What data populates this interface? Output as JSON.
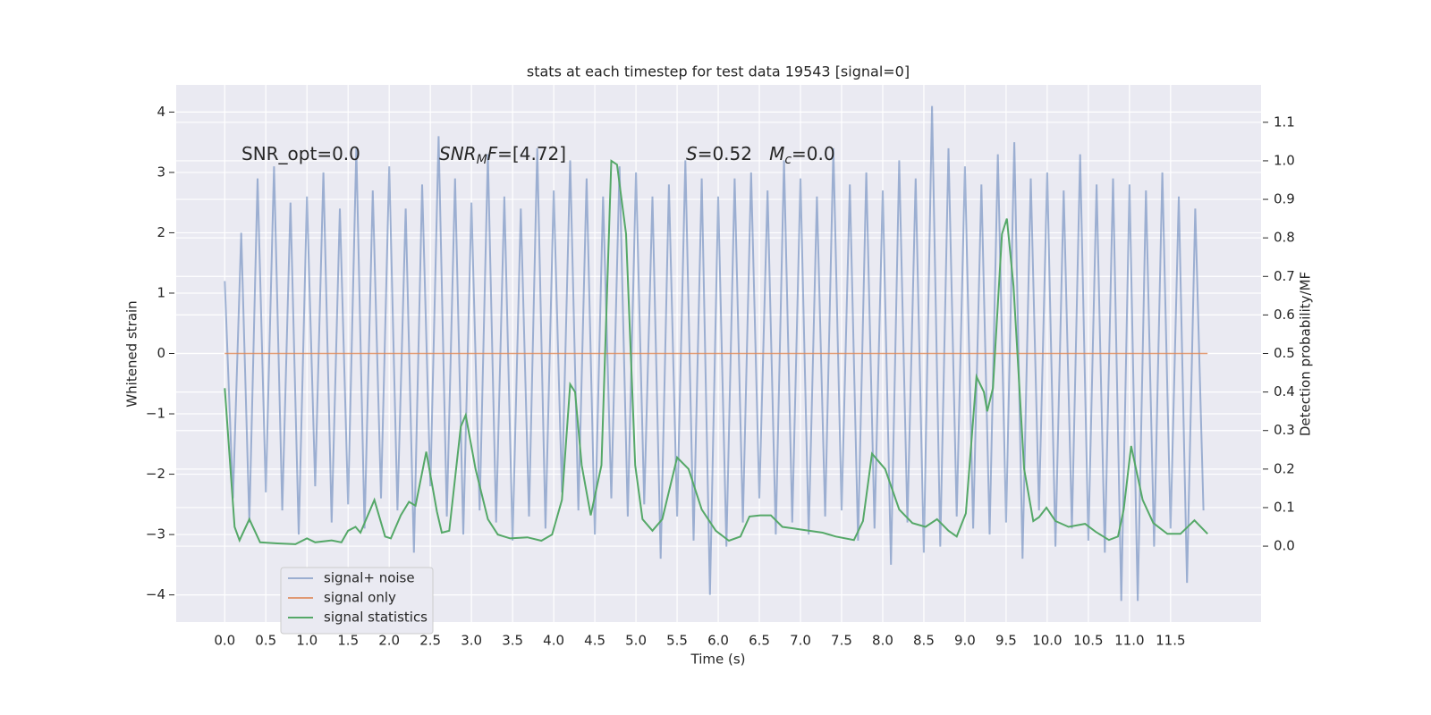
{
  "chart_data": {
    "type": "line",
    "title": "stats at each timestep for test data 19543 [signal=0]",
    "xlabel": "Time (s)",
    "ylabel": "Whitened strain",
    "y2label": "Detection probability/MF",
    "grid": true,
    "legend": "lower left",
    "annotations": [
      [
        {
          "t": "SNR_opt=0.0"
        }
      ],
      [
        {
          "t": "SNR",
          "italic": true
        },
        {
          "t": "M",
          "italic": true,
          "sub": true
        },
        {
          "t": "F",
          "italic": true
        },
        {
          "t": "=[4.72]"
        }
      ],
      [
        {
          "t": "S",
          "italic": true
        },
        {
          "t": "=0.52   "
        },
        {
          "t": "M",
          "italic": true
        },
        {
          "t": "c",
          "italic": true,
          "sub": true
        },
        {
          "t": "=0.0"
        }
      ]
    ],
    "xlim": [
      -0.59,
      12.6
    ],
    "ylim": [
      -4.45,
      4.45
    ],
    "y2lim": [
      -0.197,
      1.197
    ],
    "xticks": [
      {
        "value": 0,
        "label": "0.0"
      },
      {
        "value": 0.5,
        "label": "0.5"
      },
      {
        "value": 1,
        "label": "1.0"
      },
      {
        "value": 1.5,
        "label": "1.5"
      },
      {
        "value": 2,
        "label": "2.0"
      },
      {
        "value": 2.5,
        "label": "2.5"
      },
      {
        "value": 3,
        "label": "3.0"
      },
      {
        "value": 3.5,
        "label": "3.5"
      },
      {
        "value": 4,
        "label": "4.0"
      },
      {
        "value": 4.5,
        "label": "4.5"
      },
      {
        "value": 5,
        "label": "5.0"
      },
      {
        "value": 5.5,
        "label": "5.5"
      },
      {
        "value": 6,
        "label": "6.0"
      },
      {
        "value": 6.5,
        "label": "6.5"
      },
      {
        "value": 7,
        "label": "7.0"
      },
      {
        "value": 7.5,
        "label": "7.5"
      },
      {
        "value": 8,
        "label": "8.0"
      },
      {
        "value": 8.5,
        "label": "8.5"
      },
      {
        "value": 9,
        "label": "9.0"
      },
      {
        "value": 9.5,
        "label": "9.5"
      },
      {
        "value": 10,
        "label": "10.0"
      },
      {
        "value": 10.5,
        "label": "10.5"
      },
      {
        "value": 11,
        "label": "11.0"
      },
      {
        "value": 11.5,
        "label": "11.5"
      }
    ],
    "yticks": [
      {
        "value": -4,
        "label": "−4"
      },
      {
        "value": -3,
        "label": "−3"
      },
      {
        "value": -2,
        "label": "−2"
      },
      {
        "value": -1,
        "label": "−1"
      },
      0,
      1,
      2,
      3,
      4
    ],
    "y2ticks": [
      {
        "value": 0,
        "label": "0.0"
      },
      {
        "value": 0.1,
        "label": "0.1"
      },
      {
        "value": 0.2,
        "label": "0.2"
      },
      {
        "value": 0.3,
        "label": "0.3"
      },
      {
        "value": 0.4,
        "label": "0.4"
      },
      {
        "value": 0.5,
        "label": "0.5"
      },
      {
        "value": 0.6,
        "label": "0.6"
      },
      {
        "value": 0.7,
        "label": "0.7"
      },
      {
        "value": 0.8,
        "label": "0.8"
      },
      {
        "value": 0.9,
        "label": "0.9"
      },
      {
        "value": 1,
        "label": "1.0"
      },
      {
        "value": 1.1,
        "label": "1.1"
      }
    ],
    "series": [
      {
        "name": "signal+ noise",
        "color": "#4c72b0",
        "x": [
          0,
          0.1,
          0.2,
          0.3,
          0.4,
          0.5,
          0.6,
          0.7,
          0.8,
          0.9,
          1,
          1.1,
          1.2,
          1.3,
          1.4,
          1.5,
          1.6,
          1.7,
          1.8,
          1.9,
          2,
          2.1,
          2.2,
          2.3,
          2.4,
          2.5,
          2.6,
          2.7,
          2.8,
          2.9,
          3,
          3.1,
          3.2,
          3.3,
          3.4,
          3.5,
          3.6,
          3.7,
          3.8,
          3.9,
          4,
          4.1,
          4.2,
          4.3,
          4.4,
          4.5,
          4.6,
          4.7,
          4.8,
          4.9,
          5,
          5.1,
          5.2,
          5.3,
          5.4,
          5.5,
          5.6,
          5.7,
          5.8,
          5.9,
          6,
          6.1,
          6.2,
          6.3,
          6.4,
          6.5,
          6.6,
          6.7,
          6.8,
          6.9,
          7,
          7.1,
          7.2,
          7.3,
          7.4,
          7.5,
          7.6,
          7.7,
          7.8,
          7.9,
          8,
          8.1,
          8.2,
          8.3,
          8.4,
          8.5,
          8.6,
          8.7,
          8.8,
          8.9,
          9,
          9.1,
          9.2,
          9.3,
          9.4,
          9.5,
          9.6,
          9.7,
          9.8,
          9.9,
          10,
          10.1,
          10.2,
          10.3,
          10.4,
          10.5,
          10.6,
          10.7,
          10.8,
          10.9,
          11,
          11.1,
          11.2,
          11.3,
          11.4,
          11.5,
          11.6,
          11.7,
          11.8,
          11.9
        ],
        "values": [
          1.2,
          -2.4,
          2.0,
          -2.8,
          2.9,
          -2.3,
          3.1,
          -2.6,
          2.5,
          -3.0,
          2.6,
          -2.2,
          3.0,
          -2.8,
          2.4,
          -2.5,
          3.4,
          -2.9,
          2.7,
          -2.4,
          3.1,
          -2.6,
          2.4,
          -3.3,
          2.8,
          -2.2,
          3.6,
          -2.7,
          2.9,
          -3.0,
          2.5,
          -2.6,
          3.3,
          -2.8,
          2.6,
          -3.1,
          2.4,
          -2.7,
          3.4,
          -2.9,
          2.7,
          -2.3,
          3.2,
          -2.6,
          2.9,
          -3.0,
          2.6,
          -2.4,
          3.1,
          -2.7,
          3.0,
          -2.5,
          2.6,
          -3.4,
          2.8,
          -2.7,
          3.2,
          -3.1,
          2.9,
          -4.0,
          2.6,
          -3.2,
          2.9,
          -2.8,
          3.0,
          -2.4,
          2.7,
          -3.0,
          3.2,
          -2.8,
          2.9,
          -3.0,
          2.6,
          -2.7,
          3.4,
          -2.6,
          2.8,
          -3.1,
          3.0,
          -2.9,
          2.7,
          -3.5,
          3.2,
          -2.8,
          2.9,
          -3.3,
          4.1,
          -3.2,
          3.4,
          -2.7,
          3.1,
          -2.9,
          2.8,
          -3.0,
          3.3,
          -2.8,
          3.5,
          -3.4,
          2.9,
          -2.6,
          3.0,
          -3.2,
          2.7,
          -2.9,
          3.3,
          -3.1,
          2.8,
          -3.3,
          2.9,
          -4.1,
          2.8,
          -4.1,
          2.7,
          -3.2,
          3.0,
          -2.9,
          2.6,
          -3.8,
          2.4,
          -2.6
        ]
      },
      {
        "name": "signal only",
        "color": "#dd8452",
        "x": [
          0,
          11.95
        ],
        "values": [
          0,
          0
        ]
      },
      {
        "name": "signal statistics",
        "color": "#55a868",
        "axis": "y2",
        "x": [
          0,
          0.12,
          0.18,
          0.3,
          0.43,
          0.64,
          0.86,
          1.0,
          1.1,
          1.3,
          1.42,
          1.5,
          1.59,
          1.65,
          1.82,
          1.95,
          2.02,
          2.14,
          2.24,
          2.32,
          2.45,
          2.58,
          2.64,
          2.73,
          2.87,
          2.93,
          3.05,
          3.2,
          3.32,
          3.47,
          3.68,
          3.85,
          3.98,
          4.1,
          4.2,
          4.26,
          4.34,
          4.45,
          4.58,
          4.7,
          4.77,
          4.88,
          4.99,
          5.08,
          5.2,
          5.32,
          5.5,
          5.64,
          5.8,
          5.97,
          6.13,
          6.27,
          6.38,
          6.51,
          6.64,
          6.78,
          6.95,
          7.1,
          7.27,
          7.43,
          7.65,
          7.76,
          7.87,
          8.03,
          8.2,
          8.36,
          8.52,
          8.66,
          8.8,
          8.9,
          9.01,
          9.14,
          9.23,
          9.27,
          9.34,
          9.45,
          9.51,
          9.59,
          9.72,
          9.83,
          9.9,
          9.99,
          10.1,
          10.26,
          10.46,
          10.59,
          10.75,
          10.86,
          10.93,
          11.02,
          11.16,
          11.29,
          11.46,
          11.62,
          11.79,
          11.95
        ],
        "values": [
          0.41,
          0.05,
          0.015,
          0.07,
          0.01,
          0.007,
          0.005,
          0.02,
          0.01,
          0.015,
          0.01,
          0.04,
          0.05,
          0.035,
          0.12,
          0.025,
          0.02,
          0.08,
          0.115,
          0.105,
          0.245,
          0.09,
          0.035,
          0.04,
          0.31,
          0.34,
          0.2,
          0.07,
          0.03,
          0.02,
          0.023,
          0.014,
          0.03,
          0.12,
          0.42,
          0.4,
          0.21,
          0.08,
          0.21,
          1.0,
          0.99,
          0.81,
          0.21,
          0.07,
          0.04,
          0.07,
          0.23,
          0.2,
          0.095,
          0.04,
          0.014,
          0.025,
          0.077,
          0.08,
          0.08,
          0.05,
          0.045,
          0.04,
          0.035,
          0.025,
          0.016,
          0.065,
          0.24,
          0.2,
          0.095,
          0.06,
          0.05,
          0.07,
          0.04,
          0.025,
          0.085,
          0.44,
          0.4,
          0.35,
          0.41,
          0.81,
          0.85,
          0.675,
          0.2,
          0.065,
          0.075,
          0.1,
          0.065,
          0.05,
          0.058,
          0.037,
          0.016,
          0.025,
          0.095,
          0.26,
          0.12,
          0.06,
          0.032,
          0.032,
          0.067,
          0.032
        ]
      }
    ]
  }
}
